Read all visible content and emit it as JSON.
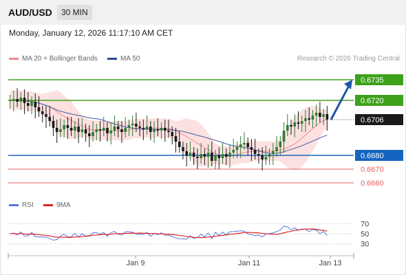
{
  "header": {
    "symbol": "AUD/USD",
    "timeframe": "30 MIN"
  },
  "datetime": "Monday, January 12, 2026 11:17:10 AM CET",
  "legend": {
    "ma20_label": "MA 20 + Bollinger Bands",
    "ma50_label": "MA 50",
    "credit": "Research © 2026 Trading Central"
  },
  "rsi_legend": {
    "rsi_label": "RSI",
    "ma_label": "9MA"
  },
  "colors": {
    "up": "#2f7d32",
    "down": "#1a1a1a",
    "ma20": "#f08a8a",
    "band_fill": "#fde0e0",
    "ma50": "#3c5ea6",
    "green_level": "#3ea11c",
    "blue_level": "#1565c0",
    "red_level": "#e06060",
    "rsi": "#5577dd",
    "rsi_ma": "#dd2222",
    "arrow": "#2156a8"
  },
  "chart_data": {
    "type": "candlestick",
    "y_range": [
      0.6652,
      0.6743
    ],
    "x_ticks": [
      "Jan 9",
      "Jan 11",
      "Jan 13"
    ],
    "levels": [
      {
        "value": 0.6735,
        "label": "0.6735",
        "kind": "resistance"
      },
      {
        "value": 0.672,
        "label": "0.6720",
        "kind": "resistance"
      },
      {
        "value": 0.6706,
        "label": "0.6706",
        "kind": "last"
      },
      {
        "value": 0.668,
        "label": "0.6680",
        "kind": "pivot"
      },
      {
        "value": 0.667,
        "label": "0.6670",
        "kind": "support"
      },
      {
        "value": 0.666,
        "label": "0.6660",
        "kind": "support"
      }
    ],
    "forecast_arrow": {
      "from": 0.6706,
      "to": 0.6735
    },
    "closes": [
      0.672,
      0.6721,
      0.6719,
      0.6722,
      0.6718,
      0.6716,
      0.6719,
      0.6715,
      0.6712,
      0.671,
      0.6708,
      0.6705,
      0.67,
      0.6697,
      0.6699,
      0.6702,
      0.67,
      0.6698,
      0.6701,
      0.6697,
      0.6699,
      0.6696,
      0.6694,
      0.6697,
      0.6699,
      0.6698,
      0.67,
      0.6696,
      0.6698,
      0.6701,
      0.6699,
      0.6697,
      0.67,
      0.6702,
      0.6703,
      0.6701,
      0.67,
      0.6699,
      0.6701,
      0.6697,
      0.6699,
      0.6698,
      0.67,
      0.6698,
      0.6697,
      0.6694,
      0.669,
      0.6686,
      0.6683,
      0.668,
      0.6682,
      0.6679,
      0.6678,
      0.6681,
      0.6679,
      0.6682,
      0.6676,
      0.668,
      0.6678,
      0.6681,
      0.6679,
      0.6682,
      0.6684,
      0.6686,
      0.6688,
      0.6689,
      0.6686,
      0.6684,
      0.6681,
      0.668,
      0.6677,
      0.6679,
      0.6681,
      0.6683,
      0.6686,
      0.669,
      0.6698,
      0.6702,
      0.6701,
      0.6704,
      0.6703,
      0.6705,
      0.6707,
      0.6706,
      0.6709,
      0.6711,
      0.6708,
      0.671,
      0.6706
    ],
    "rsi": {
      "levels": [
        70,
        50,
        30
      ],
      "range": [
        20,
        80
      ]
    }
  }
}
